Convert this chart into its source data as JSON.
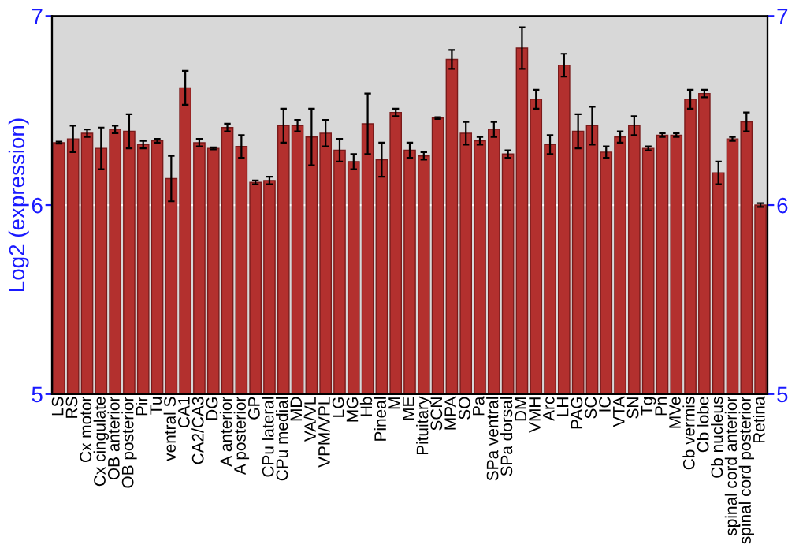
{
  "chart_data": {
    "type": "bar",
    "ylabel": "Log2 (expression)",
    "categories": [
      "LS",
      "RS",
      "Cx motor",
      "Cx cingulate",
      "OB anterior",
      "OB posterior",
      "Pir",
      "Tu",
      "ventral S",
      "CA1",
      "CA2/CA3",
      "DG",
      "A anterior",
      "A posterior",
      "GP",
      "CPu lateral",
      "CPu medial",
      "MD",
      "VA/VL",
      "VPM/VPL",
      "LG",
      "MG",
      "Hb",
      "Pineal",
      "M",
      "ME",
      "Pituitary",
      "SCN",
      "MPA",
      "SO",
      "Pa",
      "SPa ventral",
      "SPa dorsal",
      "DM",
      "VMH",
      "Arc",
      "LH",
      "PAG",
      "SC",
      "IC",
      "VTA",
      "SN",
      "Tg",
      "Pn",
      "MVe",
      "Cb vermis",
      "Cb lobe",
      "Cb nucleus",
      "spinal cord anterior",
      "spinal cord posterior",
      "Retina"
    ],
    "values": [
      6.33,
      6.35,
      6.38,
      6.3,
      6.4,
      6.39,
      6.32,
      6.34,
      6.14,
      6.62,
      6.33,
      6.3,
      6.41,
      6.31,
      6.12,
      6.13,
      6.42,
      6.42,
      6.36,
      6.38,
      6.29,
      6.23,
      6.43,
      6.24,
      6.49,
      6.29,
      6.26,
      6.46,
      6.77,
      6.38,
      6.34,
      6.4,
      6.27,
      6.83,
      6.56,
      6.32,
      6.74,
      6.39,
      6.42,
      6.28,
      6.36,
      6.42,
      6.3,
      6.37,
      6.37,
      6.56,
      6.59,
      6.17,
      6.35,
      6.44,
      6.0
    ],
    "errors": [
      0.005,
      0.07,
      0.02,
      0.11,
      0.02,
      0.09,
      0.02,
      0.01,
      0.12,
      0.09,
      0.02,
      0.005,
      0.02,
      0.06,
      0.01,
      0.02,
      0.09,
      0.03,
      0.15,
      0.07,
      0.06,
      0.04,
      0.16,
      0.09,
      0.02,
      0.04,
      0.02,
      0.005,
      0.05,
      0.06,
      0.02,
      0.04,
      0.02,
      0.11,
      0.05,
      0.05,
      0.06,
      0.09,
      0.1,
      0.03,
      0.03,
      0.05,
      0.01,
      0.01,
      0.01,
      0.05,
      0.02,
      0.06,
      0.01,
      0.05,
      0.01
    ],
    "color": "#b3302e",
    "ylim": [
      5,
      7
    ],
    "yticks": [
      5,
      6,
      7
    ],
    "y2lim": [
      5,
      7
    ],
    "y2ticks": [
      5,
      6,
      7
    ],
    "grid": "y",
    "legend": false
  }
}
